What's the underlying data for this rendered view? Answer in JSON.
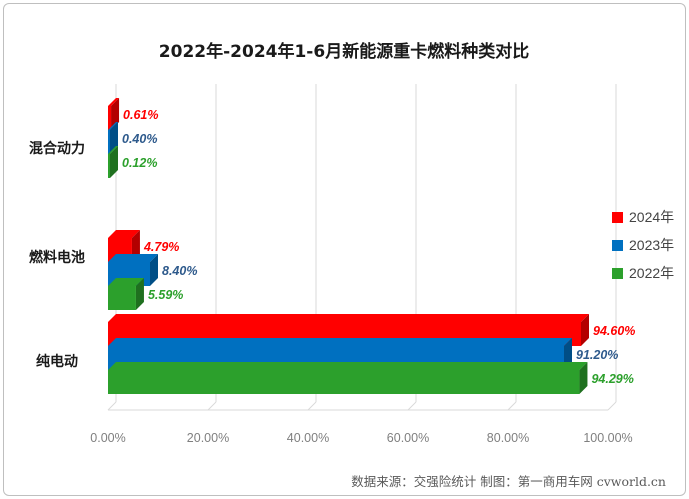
{
  "chart_data": {
    "type": "bar",
    "orientation": "horizontal",
    "title": "2022年-2024年1-6月新能源重卡燃料种类对比",
    "categories": [
      "混合动力",
      "燃料电池",
      "纯电动"
    ],
    "series": [
      {
        "name": "2024年",
        "color": "#ff0000",
        "label_color": "#ff0000",
        "values": [
          0.61,
          4.79,
          94.6
        ],
        "labels": [
          "0.61%",
          "4.79%",
          "94.60%"
        ]
      },
      {
        "name": "2023年",
        "color": "#0070c0",
        "label_color": "#2e5a8c",
        "values": [
          0.4,
          8.4,
          91.2
        ],
        "labels": [
          "0.40%",
          "8.40%",
          "91.20%"
        ]
      },
      {
        "name": "2022年",
        "color": "#2ca02c",
        "label_color": "#2ca02c",
        "values": [
          0.12,
          5.59,
          94.29
        ],
        "labels": [
          "0.12%",
          "5.59%",
          "94.29%"
        ]
      }
    ],
    "xlim": [
      0,
      100
    ],
    "xticks": [
      0,
      20,
      40,
      60,
      80,
      100
    ],
    "xtick_labels": [
      "0.00%",
      "20.00%",
      "40.00%",
      "60.00%",
      "80.00%",
      "100.00%"
    ],
    "grid": "vertical",
    "legend_position": "right",
    "style": "3d"
  },
  "source_note": "数据来源：交强险统计  制图：第一商用车网 cvworld.cn"
}
